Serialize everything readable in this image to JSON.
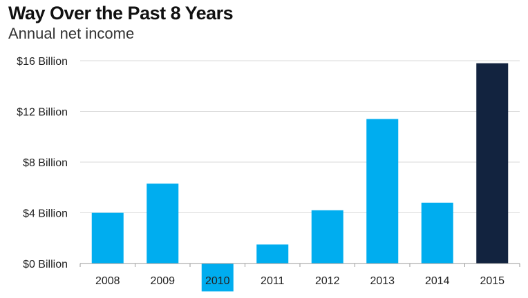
{
  "chart_data": {
    "type": "bar",
    "title": "Way Over the Past 8 Years",
    "subtitle": "Annual net income",
    "categories": [
      "2008",
      "2009",
      "2010",
      "2011",
      "2012",
      "2013",
      "2014",
      "2015"
    ],
    "values": [
      4.0,
      6.3,
      -2.2,
      1.5,
      4.2,
      11.4,
      4.8,
      15.8
    ],
    "value_unit": "Billion USD",
    "ylim": [
      -2.2,
      16
    ],
    "y_ticks": [
      0,
      4,
      8,
      12,
      16
    ],
    "y_tick_labels": [
      "$0 Billion",
      "$4 Billion",
      "$8 Billion",
      "$12 Billion",
      "$16 Billion"
    ],
    "grid": true,
    "colors": {
      "default_bar": "#00adef",
      "highlight_bar": "#12233f",
      "grid": "#d9d9d9",
      "axis": "#9a9a9a"
    },
    "highlight_index": 7
  }
}
